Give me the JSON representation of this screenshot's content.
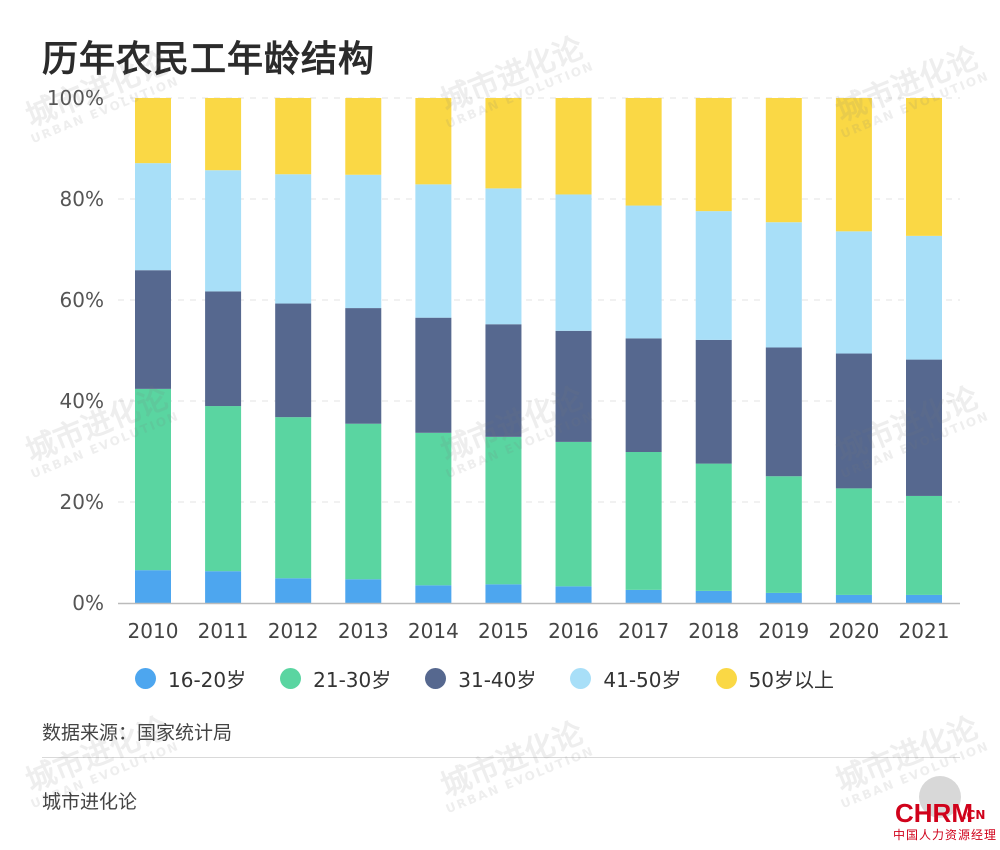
{
  "title": "历年农民工年龄结构",
  "source": "数据来源：国家统计局",
  "footer": "城市进化论",
  "watermark": {
    "main": "城市进化论",
    "sub": "URBAN EVOLUTION"
  },
  "logo": {
    "brand": "CHRM",
    "suffix": ".CN",
    "tagline": "中国人力资源经理"
  },
  "chart_data": {
    "type": "bar",
    "stacked": true,
    "categories": [
      "2010",
      "2011",
      "2012",
      "2013",
      "2014",
      "2015",
      "2016",
      "2017",
      "2018",
      "2019",
      "2020",
      "2021"
    ],
    "series": [
      {
        "name": "16-20岁",
        "color": "#4da6ef",
        "values": [
          6.5,
          6.3,
          4.9,
          4.7,
          3.5,
          3.7,
          3.3,
          2.6,
          2.4,
          2.0,
          1.6,
          1.6
        ]
      },
      {
        "name": "21-30岁",
        "color": "#5ad5a1",
        "values": [
          35.9,
          32.7,
          31.9,
          30.8,
          30.2,
          29.2,
          28.6,
          27.3,
          25.2,
          23.1,
          21.1,
          19.6
        ]
      },
      {
        "name": "31-40岁",
        "color": "#56688f",
        "values": [
          23.5,
          22.7,
          22.5,
          22.9,
          22.8,
          22.3,
          22.0,
          22.5,
          24.5,
          25.5,
          26.7,
          27.0
        ]
      },
      {
        "name": "41-50岁",
        "color": "#a8dff8",
        "values": [
          21.2,
          24.0,
          25.6,
          26.4,
          26.4,
          26.9,
          27.0,
          26.3,
          25.5,
          24.8,
          24.2,
          24.5
        ]
      },
      {
        "name": "50岁以上",
        "color": "#fad845",
        "values": [
          12.9,
          14.3,
          15.1,
          15.2,
          17.1,
          17.9,
          19.1,
          21.3,
          22.4,
          24.6,
          26.4,
          27.3
        ]
      }
    ],
    "yticks": [
      "0%",
      "20%",
      "40%",
      "60%",
      "80%",
      "100%"
    ],
    "ylim": [
      0,
      100
    ],
    "grid": true,
    "legend_position": "bottom"
  }
}
